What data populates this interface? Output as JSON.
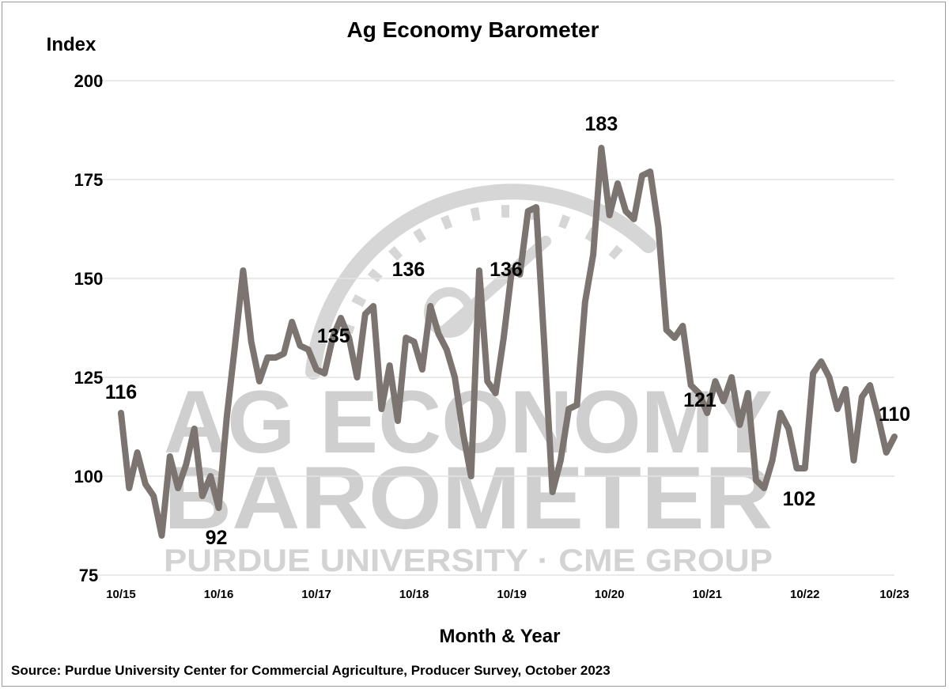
{
  "watermark": {
    "line1": "AG ECONOMY",
    "line2": "BAROMETER",
    "line3": "PURDUE UNIVERSITY · CME GROUP"
  },
  "chart_data": {
    "type": "line",
    "title": "Ag Economy Barometer",
    "ylabel": "Index",
    "xlabel": "Month & Year",
    "source": "Source: Purdue University Center for Commercial Agriculture, Producer Survey, October 2023",
    "ylim": [
      75,
      200
    ],
    "yticks": [
      75,
      100,
      125,
      150,
      175,
      200
    ],
    "grid": true,
    "legend": "none",
    "x_tick_labels": [
      "10/15",
      "10/16",
      "10/17",
      "10/18",
      "10/19",
      "10/20",
      "10/21",
      "10/22",
      "10/23"
    ],
    "line_color": "#7b7470",
    "series": [
      {
        "values": [
          116,
          97,
          106,
          98,
          95,
          85,
          105,
          97,
          103,
          112,
          95,
          100,
          92,
          115,
          133,
          152,
          134,
          124,
          130,
          130,
          131,
          139,
          133,
          132,
          127,
          126,
          135,
          140,
          135,
          125,
          141,
          143,
          117,
          128,
          114,
          135,
          134,
          127,
          143,
          136,
          132,
          125,
          111,
          100,
          152,
          124,
          121,
          135,
          152,
          151,
          167,
          168,
          133,
          96,
          104,
          117,
          118,
          144,
          156,
          183,
          166,
          174,
          167,
          165,
          176,
          177,
          163,
          137,
          135,
          138,
          123,
          121,
          116,
          124,
          119,
          125,
          113,
          121,
          99,
          97,
          104,
          116,
          112,
          102,
          102,
          126,
          129,
          125,
          117,
          122,
          104,
          120,
          123,
          115,
          106,
          110
        ]
      }
    ],
    "annotations": [
      {
        "text": "116",
        "value": 116
      },
      {
        "text": "92",
        "value": 92
      },
      {
        "text": "135",
        "value": 135
      },
      {
        "text": "136",
        "value": 136
      },
      {
        "text": "136",
        "value": 136
      },
      {
        "text": "183",
        "value": 183
      },
      {
        "text": "121",
        "value": 121
      },
      {
        "text": "102",
        "value": 102
      },
      {
        "text": "110",
        "value": 110
      }
    ]
  }
}
